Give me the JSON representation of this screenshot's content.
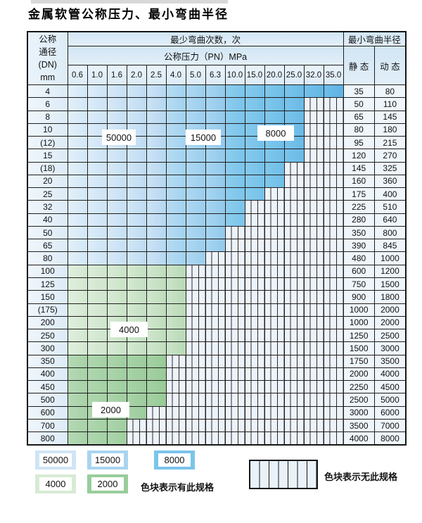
{
  "title": "金属软管公称压力、最小弯曲半径",
  "table": {
    "header": {
      "dn_lines": [
        "公称",
        "通径",
        "(DN)",
        "mm"
      ],
      "bend_cycles": "最少弯曲次数，次",
      "pressure": "公称压力（PN）MPa",
      "radius": "最小弯曲半径",
      "static_label": "静 态",
      "dynamic_label": "动 态",
      "pressures": [
        "0.6",
        "1.0",
        "1.6",
        "2.0",
        "2.5",
        "4.0",
        "5.0",
        "6.3",
        "10.0",
        "15.0",
        "20.0",
        "25.0",
        "32.0",
        "35.0"
      ]
    },
    "rows": [
      {
        "dn": "4",
        "colored": 14,
        "palette": "blue",
        "static": "35",
        "dynamic": "80"
      },
      {
        "dn": "6",
        "colored": 12,
        "palette": "blue",
        "static": "50",
        "dynamic": "110"
      },
      {
        "dn": "8",
        "colored": 12,
        "palette": "blue",
        "static": "65",
        "dynamic": "145"
      },
      {
        "dn": "10",
        "colored": 12,
        "palette": "blue",
        "static": "80",
        "dynamic": "180"
      },
      {
        "dn": "(12)",
        "colored": 12,
        "palette": "blue",
        "static": "95",
        "dynamic": "215"
      },
      {
        "dn": "15",
        "colored": 12,
        "palette": "blue",
        "static": "120",
        "dynamic": "270"
      },
      {
        "dn": "(18)",
        "colored": 11,
        "palette": "blue",
        "static": "145",
        "dynamic": "325"
      },
      {
        "dn": "20",
        "colored": 11,
        "palette": "blue",
        "static": "160",
        "dynamic": "360"
      },
      {
        "dn": "25",
        "colored": 10,
        "palette": "blue",
        "static": "175",
        "dynamic": "400"
      },
      {
        "dn": "32",
        "colored": 9,
        "palette": "blue",
        "static": "225",
        "dynamic": "510"
      },
      {
        "dn": "40",
        "colored": 9,
        "palette": "blue",
        "static": "280",
        "dynamic": "640"
      },
      {
        "dn": "50",
        "colored": 8,
        "palette": "blue",
        "static": "350",
        "dynamic": "800"
      },
      {
        "dn": "65",
        "colored": 8,
        "palette": "blue",
        "static": "390",
        "dynamic": "845"
      },
      {
        "dn": "80",
        "colored": 7,
        "palette": "blue",
        "static": "480",
        "dynamic": "1000"
      },
      {
        "dn": "100",
        "colored": 6,
        "palette": "green_light",
        "static": "600",
        "dynamic": "1200"
      },
      {
        "dn": "125",
        "colored": 6,
        "palette": "green_light",
        "static": "750",
        "dynamic": "1500"
      },
      {
        "dn": "150",
        "colored": 6,
        "palette": "green_light",
        "static": "900",
        "dynamic": "1800"
      },
      {
        "dn": "(175)",
        "colored": 6,
        "palette": "green_light",
        "static": "1000",
        "dynamic": "2000"
      },
      {
        "dn": "200",
        "colored": 6,
        "palette": "green_light",
        "static": "1000",
        "dynamic": "2000"
      },
      {
        "dn": "250",
        "colored": 6,
        "palette": "green_light",
        "static": "1250",
        "dynamic": "2500"
      },
      {
        "dn": "300",
        "colored": 6,
        "palette": "green_light",
        "static": "1500",
        "dynamic": "3000"
      },
      {
        "dn": "350",
        "colored": 5,
        "palette": "green_dark",
        "static": "1750",
        "dynamic": "3500"
      },
      {
        "dn": "400",
        "colored": 5,
        "palette": "green_dark",
        "static": "2000",
        "dynamic": "4000"
      },
      {
        "dn": "450",
        "colored": 5,
        "palette": "green_dark",
        "static": "2250",
        "dynamic": "4500"
      },
      {
        "dn": "500",
        "colored": 5,
        "palette": "green_dark",
        "static": "2500",
        "dynamic": "5000"
      },
      {
        "dn": "600",
        "colored": 4,
        "palette": "green_dark",
        "static": "3000",
        "dynamic": "6000"
      },
      {
        "dn": "700",
        "colored": 3,
        "palette": "green_dark",
        "static": "3500",
        "dynamic": "7000"
      },
      {
        "dn": "800",
        "colored": 3,
        "palette": "green_dark",
        "static": "4000",
        "dynamic": "8000"
      }
    ],
    "overlays": [
      "50000",
      "15000",
      "8000",
      "4000",
      "2000"
    ]
  },
  "legend": {
    "items": [
      {
        "label": "50000",
        "color": "#cfe4f6"
      },
      {
        "label": "15000",
        "color": "#a9d4f0"
      },
      {
        "label": "8000",
        "color": "#7cc4ea"
      },
      {
        "label": "4000",
        "color": "#d7ebd4"
      },
      {
        "label": "2000",
        "color": "#98cd9b"
      }
    ],
    "has_spec": "色块表示有此规格",
    "no_spec": "色块表示无此规格"
  },
  "colors": {
    "blue": [
      [
        "#e3f0fa",
        "#d2e7f6"
      ],
      [
        "#deecf9",
        "#cce3f5"
      ],
      [
        "#d8e9f8",
        "#c5dff4"
      ],
      [
        "#d2e6f7",
        "#bedbf2"
      ],
      [
        "#cce3f6",
        "#b6d7f1"
      ],
      [
        "#b6dcf3",
        "#a3d2ef"
      ],
      [
        "#afd8f2",
        "#9bceed"
      ],
      [
        "#a8d5f1",
        "#92c9ec"
      ],
      [
        "#8ccdee",
        "#7bc4ea"
      ],
      [
        "#86caed",
        "#75c1e9"
      ],
      [
        "#80c7ec",
        "#6fbee8"
      ],
      [
        "#7ac4eb",
        "#69bae7"
      ],
      [
        "#74c1ea",
        "#63b7e6"
      ],
      [
        "#6ebee9",
        "#5db3e5"
      ]
    ],
    "green_light": [
      [
        "#e0efdd",
        "#d3e8d0"
      ],
      [
        "#dcedd9",
        "#cee5cb"
      ],
      [
        "#d8ebd5",
        "#c9e2c6"
      ],
      [
        "#d4e9d1",
        "#c4dfc1"
      ],
      [
        "#d0e7cd",
        "#bfdcbc"
      ],
      [
        "#cbe4c8",
        "#b9d9b6"
      ]
    ],
    "green_dark": [
      [
        "#b4d9b4",
        "#a8d2a8"
      ],
      [
        "#b0d7b0",
        "#a4d0a4"
      ],
      [
        "#acd5ac",
        "#a0cea0"
      ],
      [
        "#a8d3a8",
        "#9ccc9c"
      ],
      [
        "#a4d1a4",
        "#98ca98"
      ]
    ]
  }
}
